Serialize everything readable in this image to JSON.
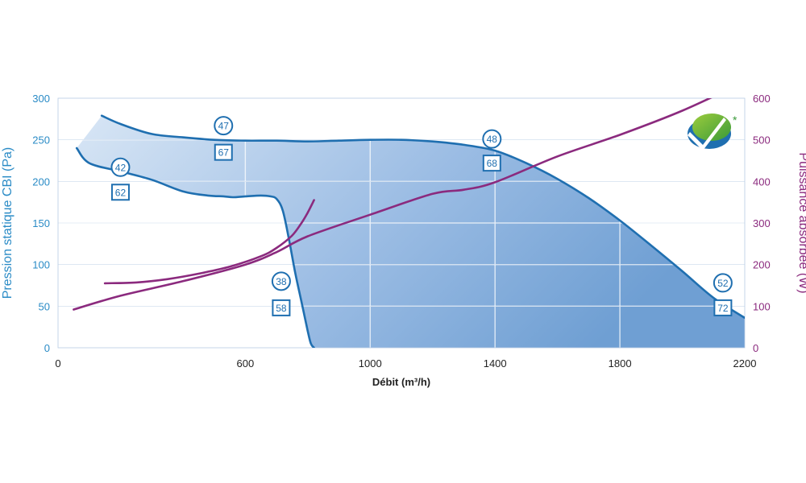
{
  "chart_data": {
    "type": "line",
    "xlabel": "Débit (m³/h)",
    "ylabel_left": "Pression statique CBI (Pa)",
    "ylabel_right": "Puissance absorbée (W)",
    "xlim": [
      0,
      2200
    ],
    "ylim_left": [
      0,
      300
    ],
    "ylim_right": [
      0,
      600
    ],
    "xticks": [
      "0",
      "600",
      "1000",
      "1400",
      "1800",
      "2200"
    ],
    "xtick_values": [
      0,
      600,
      1000,
      1400,
      1800,
      2200
    ],
    "yticks_left": [
      "0",
      "50",
      "100",
      "150",
      "200",
      "250",
      "300"
    ],
    "yticks_left_values": [
      0,
      50,
      100,
      150,
      200,
      250,
      300
    ],
    "yticks_right": [
      "0",
      "100",
      "200",
      "300",
      "400",
      "500",
      "600"
    ],
    "yticks_right_values": [
      0,
      100,
      200,
      300,
      400,
      500,
      600
    ],
    "grid": true,
    "colors": {
      "pressure": "#1f6fb0",
      "power": "#8b2a7e",
      "fill_light": "#d3e3f4",
      "fill_dark": "#6f9fd3",
      "grid": "#ffffff"
    },
    "series": [
      {
        "axis": "left",
        "x": [
          60,
          100,
          200,
          300,
          400,
          480,
          530,
          560,
          600,
          650,
          680,
          700,
          720,
          740,
          760,
          780,
          800,
          810,
          820
        ],
        "y": [
          240,
          222,
          212,
          202,
          188,
          183,
          182,
          181,
          182,
          183,
          182,
          179,
          165,
          130,
          90,
          55,
          20,
          5,
          0
        ]
      },
      {
        "axis": "left",
        "x": [
          140,
          200,
          300,
          400,
          500,
          600,
          700,
          800,
          900,
          1000,
          1100,
          1200,
          1300,
          1400,
          1500,
          1600,
          1700,
          1800,
          1900,
          2000,
          2100,
          2200
        ],
        "y": [
          279,
          269,
          257,
          253,
          250,
          249,
          249,
          248,
          249,
          250,
          250,
          248,
          244,
          237,
          222,
          203,
          180,
          153,
          123,
          92,
          60,
          36
        ]
      },
      {
        "axis": "right",
        "x": [
          50,
          200,
          400,
          600,
          700,
          800,
          1000,
          1200,
          1300,
          1400,
          1600,
          1800,
          2000,
          2200
        ],
        "y": [
          92,
          125,
          160,
          200,
          230,
          268,
          320,
          370,
          380,
          398,
          460,
          512,
          570,
          640
        ]
      },
      {
        "axis": "right",
        "x": [
          150,
          250,
          350,
          450,
          550,
          650,
          700,
          750,
          780,
          800,
          820
        ],
        "y": [
          155,
          157,
          165,
          178,
          195,
          220,
          240,
          270,
          300,
          325,
          355
        ]
      }
    ],
    "annotations": [
      {
        "text": "47",
        "shape": "circle",
        "x": 530,
        "y": 267
      },
      {
        "text": "67",
        "shape": "square",
        "x": 530,
        "y": 235
      },
      {
        "text": "42",
        "shape": "circle",
        "x": 200,
        "y": 217
      },
      {
        "text": "62",
        "shape": "square",
        "x": 200,
        "y": 187
      },
      {
        "text": "48",
        "shape": "circle",
        "x": 1390,
        "y": 251
      },
      {
        "text": "68",
        "shape": "square",
        "x": 1390,
        "y": 222
      },
      {
        "text": "38",
        "shape": "circle",
        "x": 715,
        "y": 80
      },
      {
        "text": "58",
        "shape": "square",
        "x": 715,
        "y": 48
      },
      {
        "text": "52",
        "shape": "circle",
        "x": 2130,
        "y": 78
      },
      {
        "text": "72",
        "shape": "square",
        "x": 2130,
        "y": 48
      }
    ]
  },
  "logo": {
    "name": "certification-check-logo-icon",
    "mark": "*"
  }
}
